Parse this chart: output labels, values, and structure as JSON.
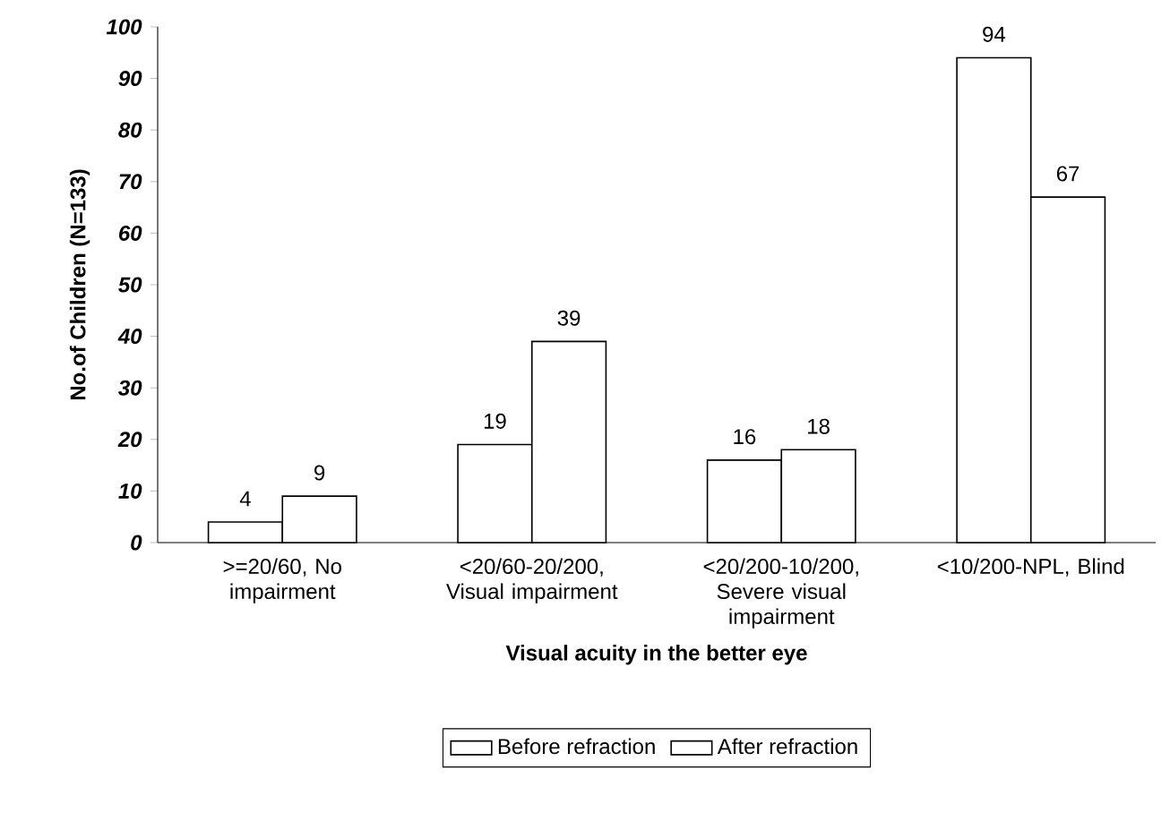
{
  "chart_data": {
    "type": "bar",
    "xlabel": "Visual acuity in the better eye",
    "ylabel": "No.of Children (N=133)",
    "categories": [
      ">=20/60, No impairment",
      "<20/60-20/200, Visual impairment",
      "<20/200-10/200, Severe visual impairment",
      "<10/200-NPL, Blind"
    ],
    "series": [
      {
        "name": "Before refraction",
        "color": "#ffffff",
        "values": [
          4,
          19,
          16,
          94
        ]
      },
      {
        "name": "After refraction",
        "color": "#ffffff",
        "values": [
          9,
          39,
          18,
          67
        ]
      }
    ],
    "ylim": [
      0,
      100
    ],
    "yticks": [
      0,
      10,
      20,
      30,
      40,
      50,
      60,
      70,
      80,
      90,
      100
    ],
    "data_labels": true,
    "legend": "bottom",
    "grid": false
  }
}
